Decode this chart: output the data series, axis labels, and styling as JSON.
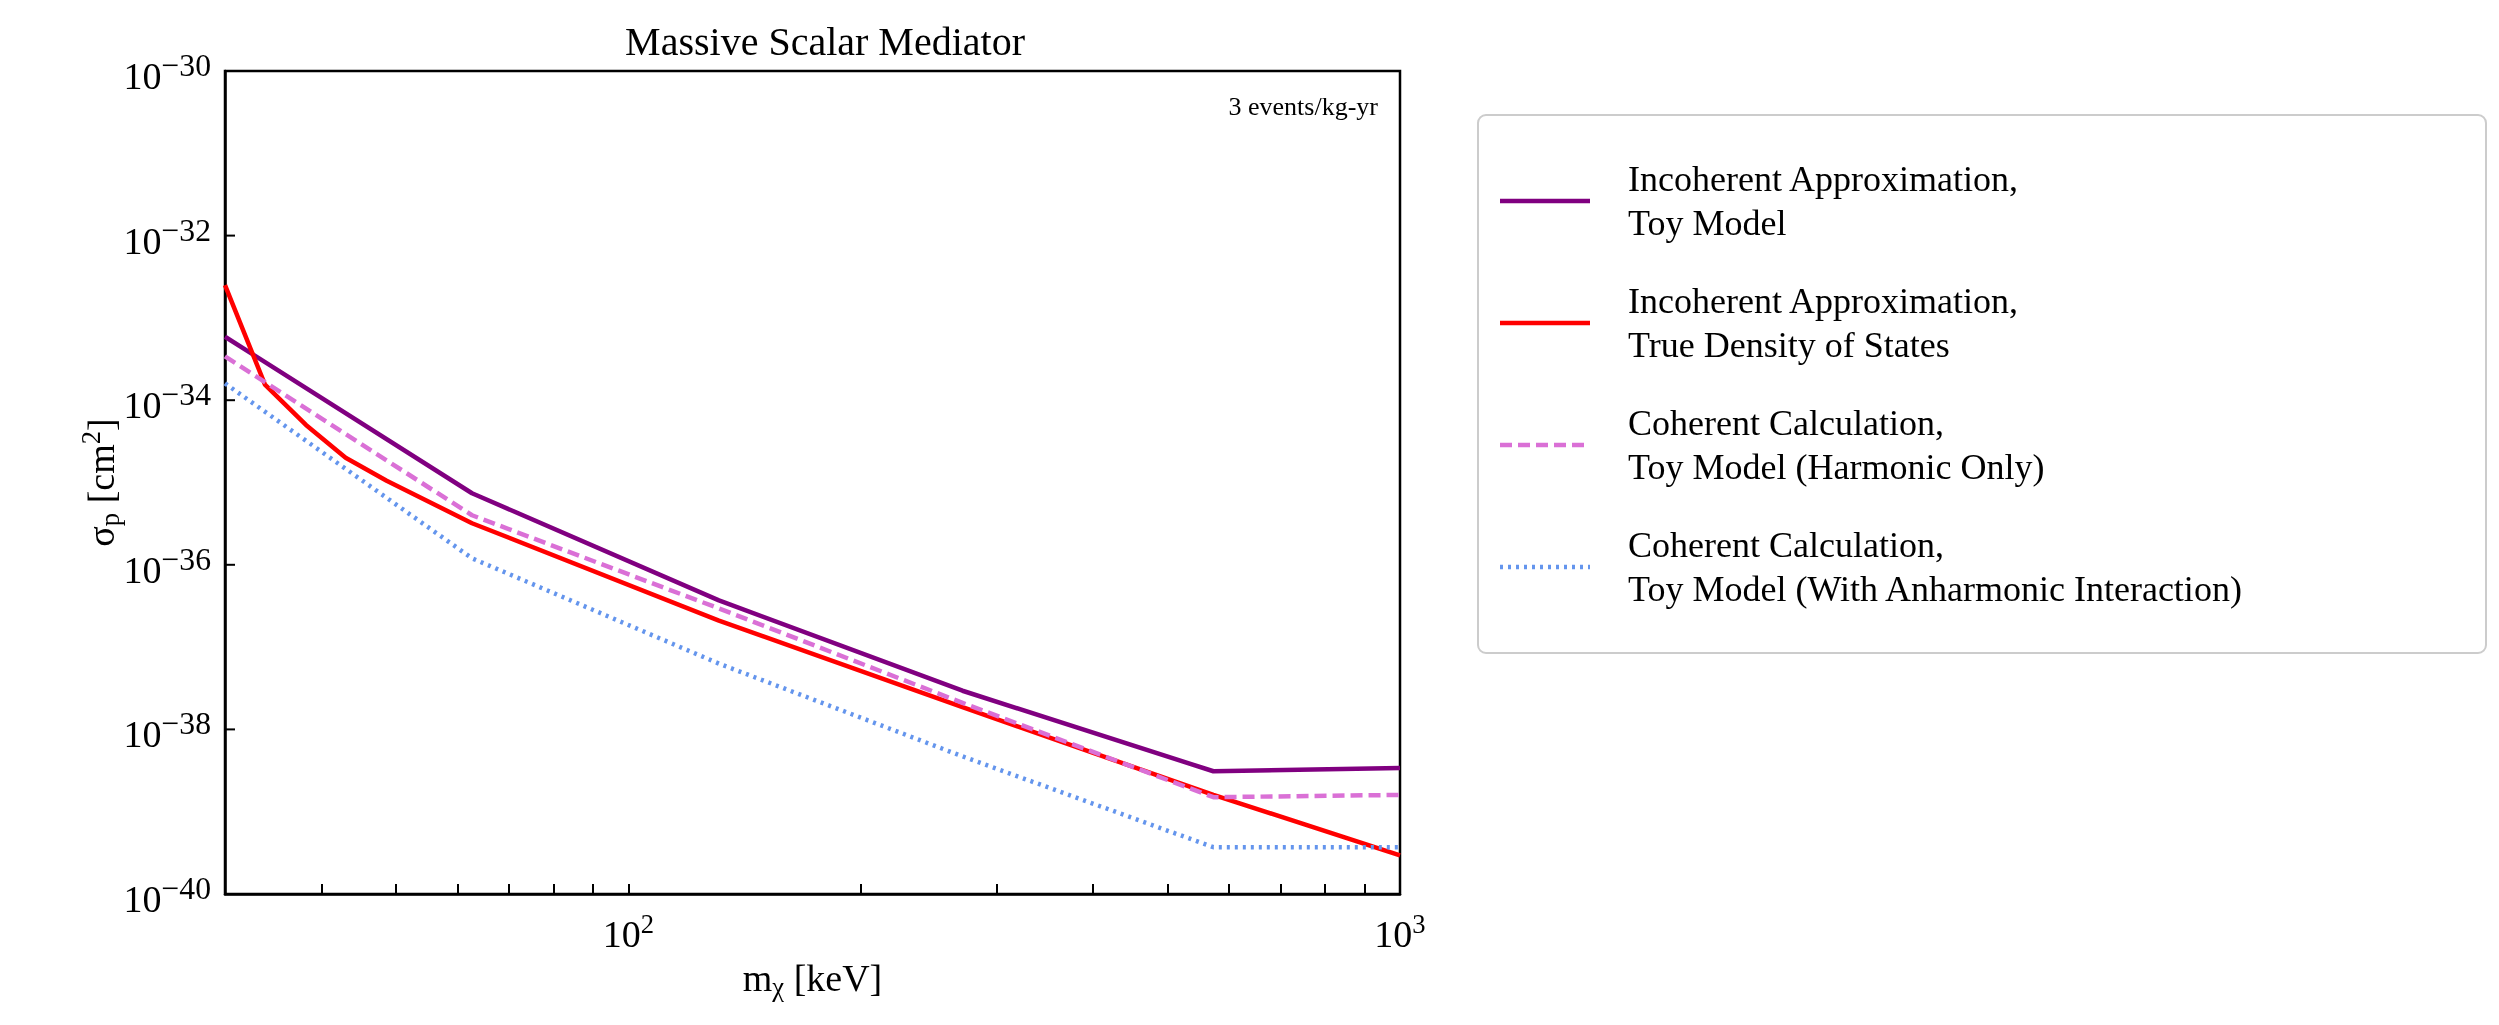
{
  "chart_data": {
    "type": "line",
    "title": "Massive Scalar Mediator",
    "xlabel": "m$_{χ}$ [keV]",
    "ylabel": "σ$_{p}$ [cm$^{2}$]",
    "annotations": [
      "3 events/kg-yr"
    ],
    "log": "xy",
    "grid": false,
    "legend": "right",
    "marker": "none",
    "xlim": [
      30,
      1000
    ],
    "ylim": [
      1e-40,
      1e-30
    ],
    "xticks": [
      {
        "value": 30,
        "label": null
      },
      {
        "value": 40,
        "label": null
      },
      {
        "value": 50,
        "label": null
      },
      {
        "value": 60,
        "label": null
      },
      {
        "value": 70,
        "label": null
      },
      {
        "value": 80,
        "label": null
      },
      {
        "value": 90,
        "label": null
      },
      {
        "value": 100,
        "label": "10$^{2}$"
      },
      {
        "value": 200,
        "label": null
      },
      {
        "value": 300,
        "label": null
      },
      {
        "value": 400,
        "label": null
      },
      {
        "value": 500,
        "label": null
      },
      {
        "value": 600,
        "label": null
      },
      {
        "value": 700,
        "label": null
      },
      {
        "value": 800,
        "label": null
      },
      {
        "value": 900,
        "label": null
      },
      {
        "value": 1000,
        "label": "10$^{3}$"
      }
    ],
    "yticks": [
      {
        "value": 1e-40,
        "label": "10$^{−40}$"
      },
      {
        "value": 1e-38,
        "label": "10$^{−38}$"
      },
      {
        "value": 1e-36,
        "label": "10$^{−36}$"
      },
      {
        "value": 1e-34,
        "label": "10$^{−34}$"
      },
      {
        "value": 1e-32,
        "label": "10$^{−32}$"
      },
      {
        "value": 1e-30,
        "label": "10$^{−30}$"
      }
    ],
    "series": [
      {
        "name": "Incoherent Approximation,\nToy Model",
        "color": "#800080",
        "line_style": "solid",
        "x": [
          30,
          62.7,
          131,
          271,
          573,
          1000
        ],
        "values": [
          5.9e-34,
          7.4e-36,
          3.7e-37,
          2.95e-38,
          3.1e-39,
          3.4e-39
        ]
      },
      {
        "name": "Incoherent Approximation,\nTrue Density of States",
        "color": "#ff0000",
        "line_style": "solid",
        "x": [
          30,
          33.8,
          38.2,
          43,
          48.6,
          62.7,
          131,
          271,
          573,
          1000
        ],
        "values": [
          2.5e-33,
          1.55e-34,
          5e-35,
          2e-35,
          1.05e-35,
          3.2e-36,
          2.1e-37,
          1.86e-38,
          1.6e-39,
          2.95e-40
        ]
      },
      {
        "name": "Coherent Calculation,\nToy Model (Harmonic Only)",
        "color": "#da70d6",
        "line_style": "dashed",
        "x": [
          30,
          62.7,
          131,
          271,
          573,
          1000
        ],
        "values": [
          3.4e-34,
          4e-36,
          2.95e-37,
          2.1e-38,
          1.5e-39,
          1.6e-39
        ]
      },
      {
        "name": "Coherent Calculation,\nToy Model (With Anharmonic Interaction)",
        "color": "#6495ed",
        "line_style": "dotted",
        "x": [
          30,
          62.7,
          131,
          271,
          573,
          1000
        ],
        "values": [
          1.6e-34,
          1.2e-36,
          6.3e-38,
          4.7e-39,
          3.7e-40,
          3.7e-40
        ]
      }
    ]
  }
}
